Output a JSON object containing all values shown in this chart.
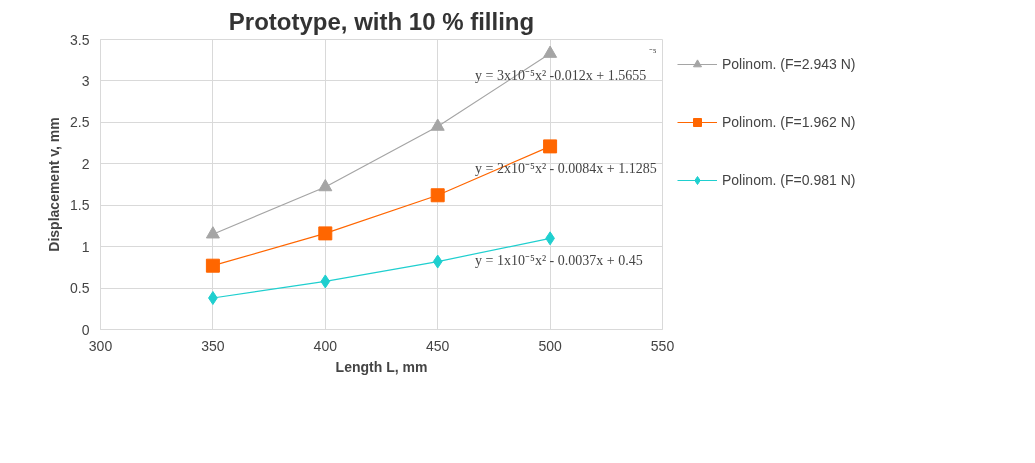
{
  "chart_data": {
    "type": "line",
    "title": "Prototype, with 10 % filling",
    "xlabel": "Length L, mm",
    "ylabel": "Displacement v, mm",
    "x": [
      350,
      400,
      450,
      500
    ],
    "series": [
      {
        "name": "Polinom. (F=2.943 N)",
        "color": "#a5a5a5",
        "marker": "triangle",
        "values": [
          1.15,
          1.72,
          2.45,
          3.33
        ]
      },
      {
        "name": "Polinom. (F=1.962 N)",
        "color": "#ff6600",
        "marker": "square",
        "values": [
          0.77,
          1.16,
          1.62,
          2.21
        ]
      },
      {
        "name": "Polinom. (F=0.981 N)",
        "color": "#1fcfcf",
        "marker": "diamond",
        "values": [
          0.38,
          0.58,
          0.82,
          1.1
        ]
      }
    ],
    "xlim": [
      300,
      550
    ],
    "xticks": [
      300,
      350,
      400,
      450,
      500,
      550
    ],
    "ylim": [
      0,
      3.5
    ],
    "yticks": [
      0,
      0.5,
      1,
      1.5,
      2,
      2.5,
      3,
      3.5
    ],
    "grid": true,
    "legend": "right",
    "annotations": [
      "y = 3x10⁻⁵x² -0.012x + 1.5655",
      "y = 2x10⁻⁵x² - 0.0084x + 1.1285",
      "y = 1x10⁻⁵x² - 0.0037x + 0.45",
      "⁻⁵"
    ]
  }
}
